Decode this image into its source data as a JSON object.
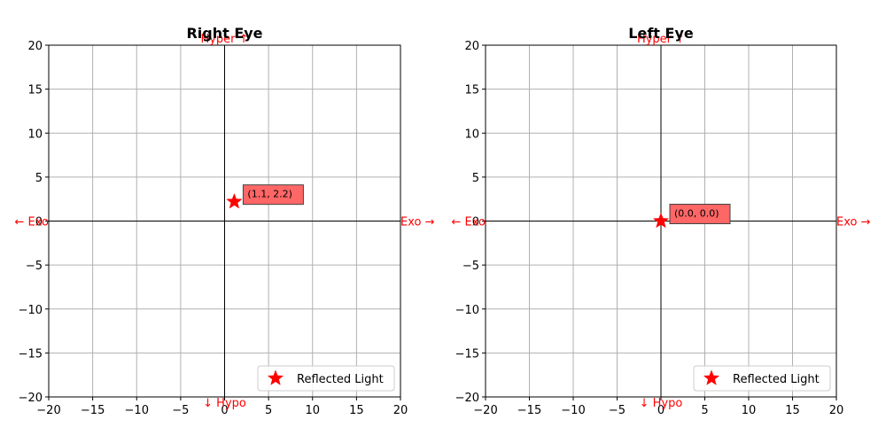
{
  "chart_data": [
    {
      "type": "scatter",
      "title": "Right Eye",
      "xlim": [
        -20,
        20
      ],
      "ylim": [
        -20,
        20
      ],
      "xticks": [
        -20,
        -15,
        -10,
        -5,
        0,
        5,
        10,
        15,
        20
      ],
      "yticks": [
        -20,
        -15,
        -10,
        -5,
        0,
        5,
        10,
        15,
        20
      ],
      "grid": true,
      "direction_labels": {
        "top": "Hyper ↑",
        "bottom": "↓ Hypo",
        "left": "← Exo",
        "right": "Exo →"
      },
      "series": [
        {
          "name": "Reflected Light",
          "marker": "star",
          "color": "#ff0000",
          "points": [
            {
              "x": 1.1,
              "y": 2.2
            }
          ]
        }
      ],
      "annotations": [
        {
          "x": 1.1,
          "y": 2.2,
          "text": "(1.1, 2.2)"
        }
      ],
      "legend_position": "lower-right"
    },
    {
      "type": "scatter",
      "title": "Left Eye",
      "xlim": [
        -20,
        20
      ],
      "ylim": [
        -20,
        20
      ],
      "xticks": [
        -20,
        -15,
        -10,
        -5,
        0,
        5,
        10,
        15,
        20
      ],
      "yticks": [
        -20,
        -15,
        -10,
        -5,
        0,
        5,
        10,
        15,
        20
      ],
      "grid": true,
      "direction_labels": {
        "top": "Hyper ↑",
        "bottom": "↓ Hypo",
        "left": "← Exo",
        "right": "Exo →"
      },
      "series": [
        {
          "name": "Reflected Light",
          "marker": "star",
          "color": "#ff0000",
          "points": [
            {
              "x": 0.0,
              "y": 0.0
            }
          ]
        }
      ],
      "annotations": [
        {
          "x": 0.0,
          "y": 0.0,
          "text": "(0.0, 0.0)"
        }
      ],
      "legend_position": "lower-right"
    }
  ],
  "colors": {
    "marker": "#ff0000",
    "direction_text": "#ff0000",
    "annotation_box": "#ff6666",
    "grid": "#b0b0b0"
  }
}
